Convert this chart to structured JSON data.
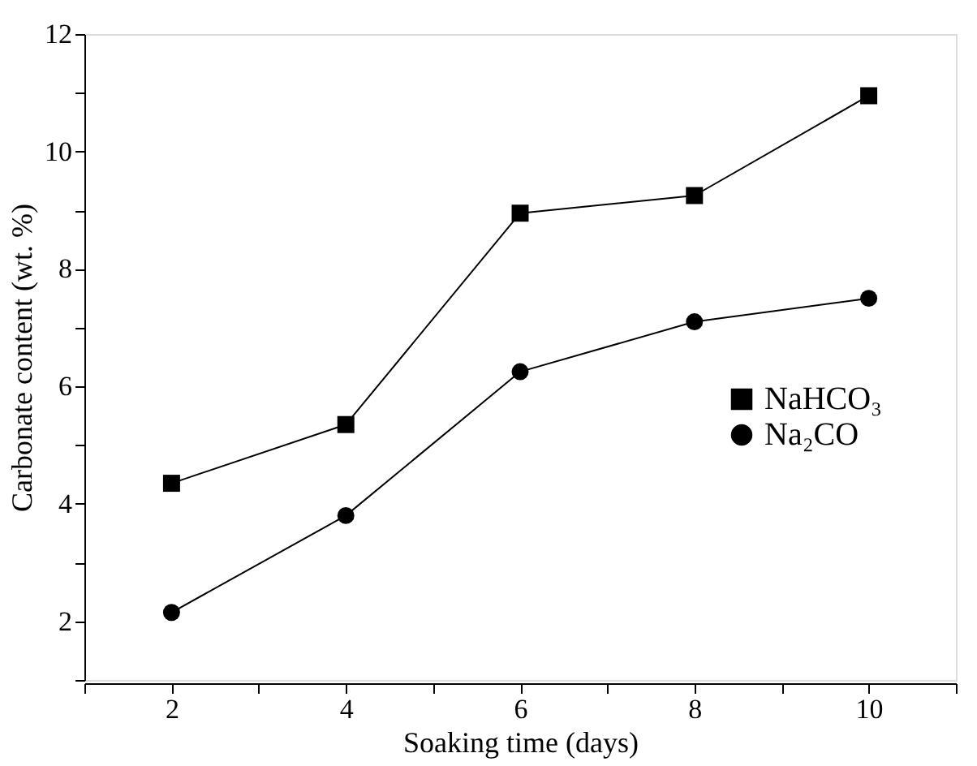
{
  "chart_data": {
    "type": "line",
    "xlabel": "Soaking time (days)",
    "ylabel": "Carbonate content (wt. %)",
    "x": [
      2,
      4,
      6,
      8,
      10
    ],
    "series": [
      {
        "name": "NaHCO₃",
        "color": "#000000",
        "marker": "square",
        "values": [
          4.35,
          5.35,
          8.95,
          9.25,
          10.95
        ]
      },
      {
        "name": "Na₂CO",
        "color": "#000000",
        "marker": "circle",
        "values": [
          2.15,
          3.8,
          6.25,
          7.1,
          7.5
        ]
      }
    ],
    "xlim": [
      1,
      11
    ],
    "ylim": [
      1,
      12
    ],
    "xticks": [
      {
        "value": 1,
        "label": null
      },
      2,
      {
        "value": 3,
        "label": null
      },
      4,
      {
        "value": 5,
        "label": null
      },
      6,
      {
        "value": 7,
        "label": null
      },
      8,
      {
        "value": 9,
        "label": null
      },
      10,
      {
        "value": 11,
        "label": null
      }
    ],
    "yticks": [
      {
        "value": 1,
        "label": null
      },
      2,
      {
        "value": 3,
        "label": null
      },
      4,
      {
        "value": 5,
        "label": null
      },
      6,
      {
        "value": 7,
        "label": null
      },
      8,
      {
        "value": 9,
        "label": null
      },
      10,
      {
        "value": 11,
        "label": null
      },
      12
    ],
    "grid": false,
    "legend": "right",
    "line_style": "solid"
  }
}
